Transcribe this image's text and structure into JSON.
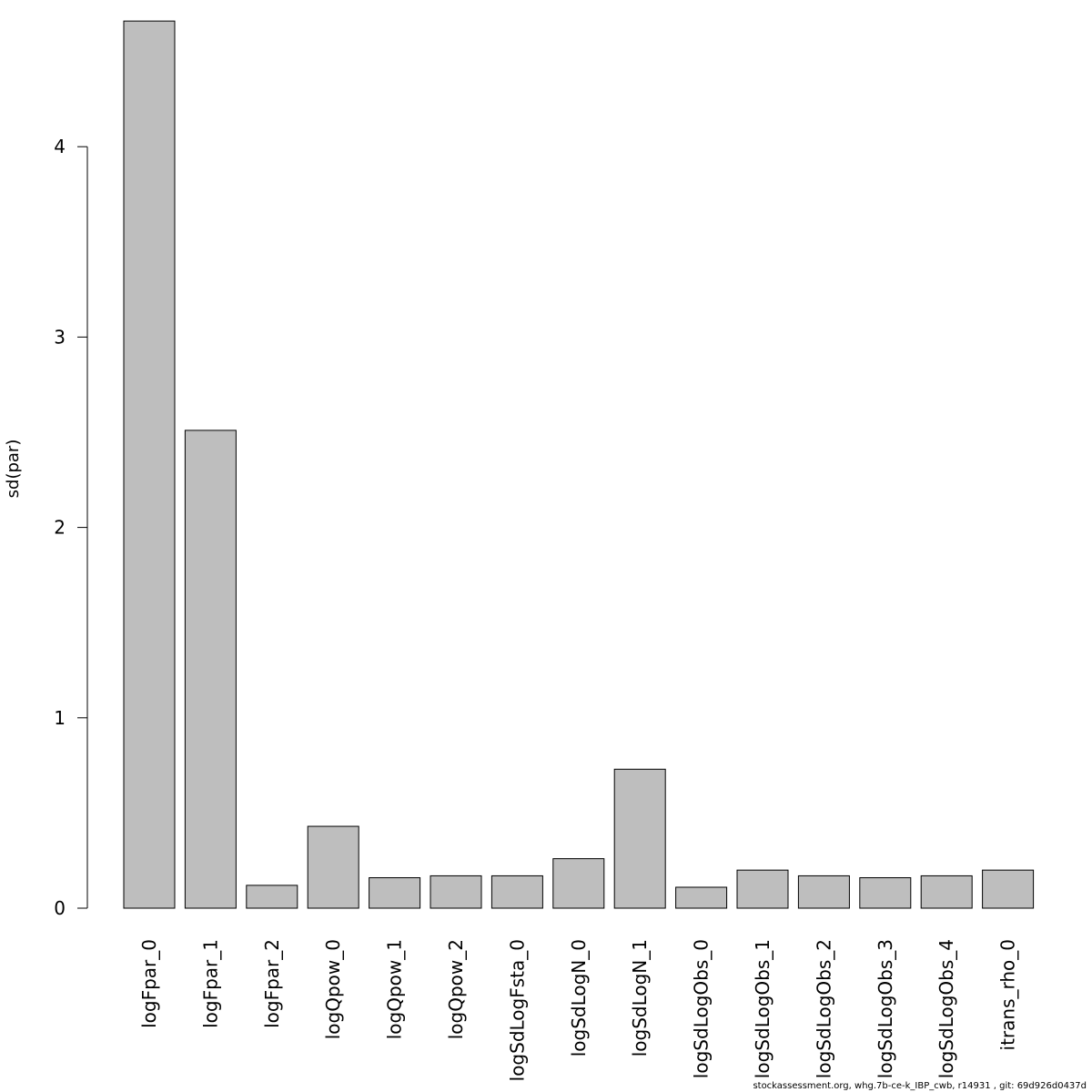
{
  "chart_data": {
    "type": "bar",
    "title": "",
    "xlabel": "",
    "ylabel": "sd(par)",
    "ylim": [
      0,
      4.66
    ],
    "yticks": [
      0,
      1,
      2,
      3,
      4
    ],
    "grid": false,
    "bar_color": "#bebebe",
    "bar_edge_color": "#000000",
    "categories": [
      "logFpar_0",
      "logFpar_1",
      "logFpar_2",
      "logQpow_0",
      "logQpow_1",
      "logQpow_2",
      "logSdLogFsta_0",
      "logSdLogN_0",
      "logSdLogN_1",
      "logSdLogObs_0",
      "logSdLogObs_1",
      "logSdLogObs_2",
      "logSdLogObs_3",
      "logSdLogObs_4",
      "itrans_rho_0"
    ],
    "values": [
      4.66,
      2.51,
      0.12,
      0.43,
      0.16,
      0.17,
      0.17,
      0.26,
      0.73,
      0.11,
      0.2,
      0.17,
      0.16,
      0.17,
      0.2
    ]
  },
  "footer": "stockassessment.org, whg.7b-ce-k_IBP_cwb, r14931 , git: 69d926d0437d"
}
